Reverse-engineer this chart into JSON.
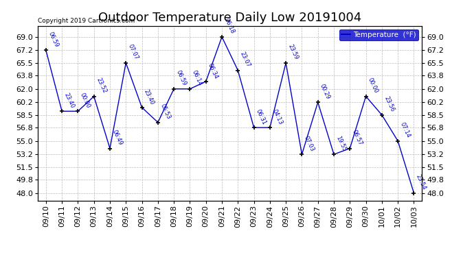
{
  "title": "Outdoor Temperature Daily Low 20191004",
  "copyright": "Copyright 2019 Cartronics.com",
  "legend_label": "Temperature  (°F)",
  "dates": [
    "09/10",
    "09/11",
    "09/12",
    "09/13",
    "09/14",
    "09/15",
    "09/16",
    "09/17",
    "09/18",
    "09/19",
    "09/20",
    "09/21",
    "09/22",
    "09/23",
    "09/24",
    "09/25",
    "09/26",
    "09/27",
    "09/28",
    "09/29",
    "09/30",
    "10/01",
    "10/02",
    "10/03"
  ],
  "temperatures": [
    67.2,
    59.0,
    59.0,
    61.0,
    54.0,
    65.5,
    59.5,
    57.5,
    62.0,
    62.0,
    63.0,
    69.0,
    64.5,
    56.8,
    56.8,
    65.5,
    53.2,
    60.2,
    53.2,
    54.0,
    61.0,
    58.5,
    55.0,
    48.0
  ],
  "time_labels": [
    "06:59",
    "23:40",
    "00:00",
    "23:52",
    "06:49",
    "07:07",
    "23:40",
    "05:53",
    "06:59",
    "06:14",
    "06:34",
    "06:18",
    "23:07",
    "06:31",
    "04:13",
    "23:59",
    "07:03",
    "00:29",
    "19:55",
    "06:57",
    "00:00",
    "23:56",
    "07:14",
    "23:54"
  ],
  "line_color": "#0000CC",
  "marker_color": "#000000",
  "background_color": "#FFFFFF",
  "grid_color": "#BBBBBB",
  "label_color": "#0000CC",
  "legend_bg": "#0000CC",
  "legend_fg": "#FFFFFF",
  "ylim_min": 47.0,
  "ylim_max": 70.5,
  "yticks": [
    48.0,
    49.8,
    51.5,
    53.2,
    55.0,
    56.8,
    58.5,
    60.2,
    62.0,
    63.8,
    65.5,
    67.2,
    69.0
  ],
  "title_fontsize": 13,
  "tick_fontsize": 8,
  "label_fontsize": 7
}
